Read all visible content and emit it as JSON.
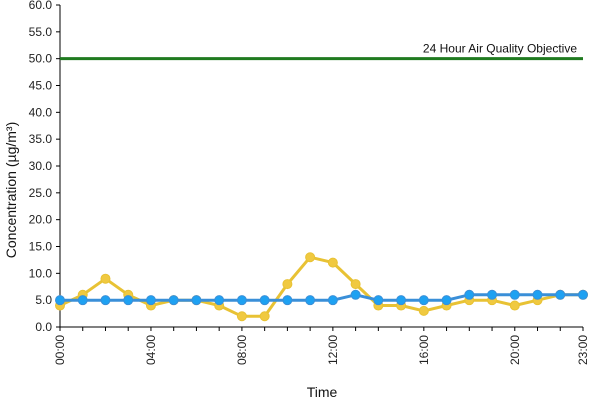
{
  "chart_data": {
    "type": "line",
    "xlabel": "Time",
    "ylabel": "Concentration (µg/m³)",
    "ylim": [
      0,
      60
    ],
    "yticks": [
      "0.0",
      "5.0",
      "10.0",
      "15.0",
      "20.0",
      "25.0",
      "30.0",
      "35.0",
      "40.0",
      "45.0",
      "50.0",
      "55.0",
      "60.0"
    ],
    "x": [
      "00:00",
      "01:00",
      "02:00",
      "03:00",
      "04:00",
      "05:00",
      "06:00",
      "07:00",
      "08:00",
      "09:00",
      "10:00",
      "11:00",
      "12:00",
      "13:00",
      "14:00",
      "15:00",
      "16:00",
      "17:00",
      "18:00",
      "19:00",
      "20:00",
      "21:00",
      "22:00",
      "23:00"
    ],
    "xtick_labels": [
      "00:00",
      "04:00",
      "08:00",
      "12:00",
      "16:00",
      "20:00",
      "23:00"
    ],
    "grid": false,
    "legend": "none",
    "series": [
      {
        "color": "#e8c234",
        "marker_color": "#f0c940",
        "values": [
          4,
          6,
          9,
          6,
          4,
          5,
          5,
          4,
          2,
          2,
          8,
          13,
          12,
          8,
          4,
          4,
          3,
          4,
          5,
          5,
          4,
          5,
          6,
          6
        ]
      },
      {
        "color": "#3a8fd8",
        "marker_color": "#1ea1f2",
        "values": [
          5,
          5,
          5,
          5,
          5,
          5,
          5,
          5,
          5,
          5,
          5,
          5,
          5,
          6,
          5,
          5,
          5,
          5,
          6,
          6,
          6,
          6,
          6,
          6
        ]
      }
    ],
    "reference_line": {
      "value": 50,
      "label": "24 Hour Air Quality Objective",
      "color": "#1f7a1f"
    }
  }
}
